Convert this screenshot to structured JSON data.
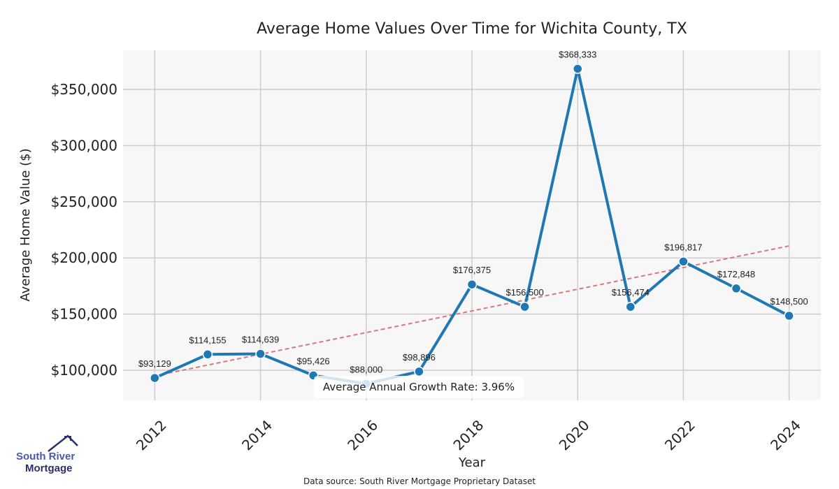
{
  "chart_data": {
    "type": "line",
    "title": "Average Home Values Over Time for Wichita County, TX",
    "xlabel": "Year",
    "ylabel": "Average Home Value ($)",
    "x": [
      2012,
      2013,
      2014,
      2015,
      2016,
      2017,
      2018,
      2019,
      2020,
      2021,
      2022,
      2023,
      2024
    ],
    "series": [
      {
        "name": "Average Home Value",
        "color": "#1f77b4",
        "values": [
          93129,
          114155,
          114639,
          95426,
          88000,
          98896,
          176375,
          156500,
          368333,
          156474,
          196817,
          172848,
          148500
        ],
        "labels": [
          "$93,129",
          "$114,155",
          "$114,639",
          "$95,426",
          "$88,000",
          "$98,896",
          "$176,375",
          "$156,500",
          "$368,333",
          "$156,474",
          "$196,817",
          "$172,848",
          "$148,500"
        ]
      }
    ],
    "trend": {
      "name": "Trend",
      "color": "#d9777c",
      "start": [
        2012,
        95000
      ],
      "end": [
        2024,
        210700
      ]
    },
    "xticks": [
      2012,
      2014,
      2016,
      2018,
      2020,
      2022,
      2024
    ],
    "xtick_labels": [
      "2012",
      "2014",
      "2016",
      "2018",
      "2020",
      "2022",
      "2024"
    ],
    "yticks": [
      100000,
      150000,
      200000,
      250000,
      300000,
      350000
    ],
    "ytick_labels": [
      "$100,000",
      "$150,000",
      "$200,000",
      "$250,000",
      "$300,000",
      "$350,000"
    ],
    "xlim": [
      2011.4,
      2024.6
    ],
    "ylim": [
      73300,
      384800
    ],
    "grid": true,
    "annotation": "Average Annual Growth Rate: 3.96%",
    "source": "Data source: South River Mortgage Proprietary Dataset"
  },
  "logo": {
    "line1": "South River",
    "line2": "Mortgage"
  }
}
